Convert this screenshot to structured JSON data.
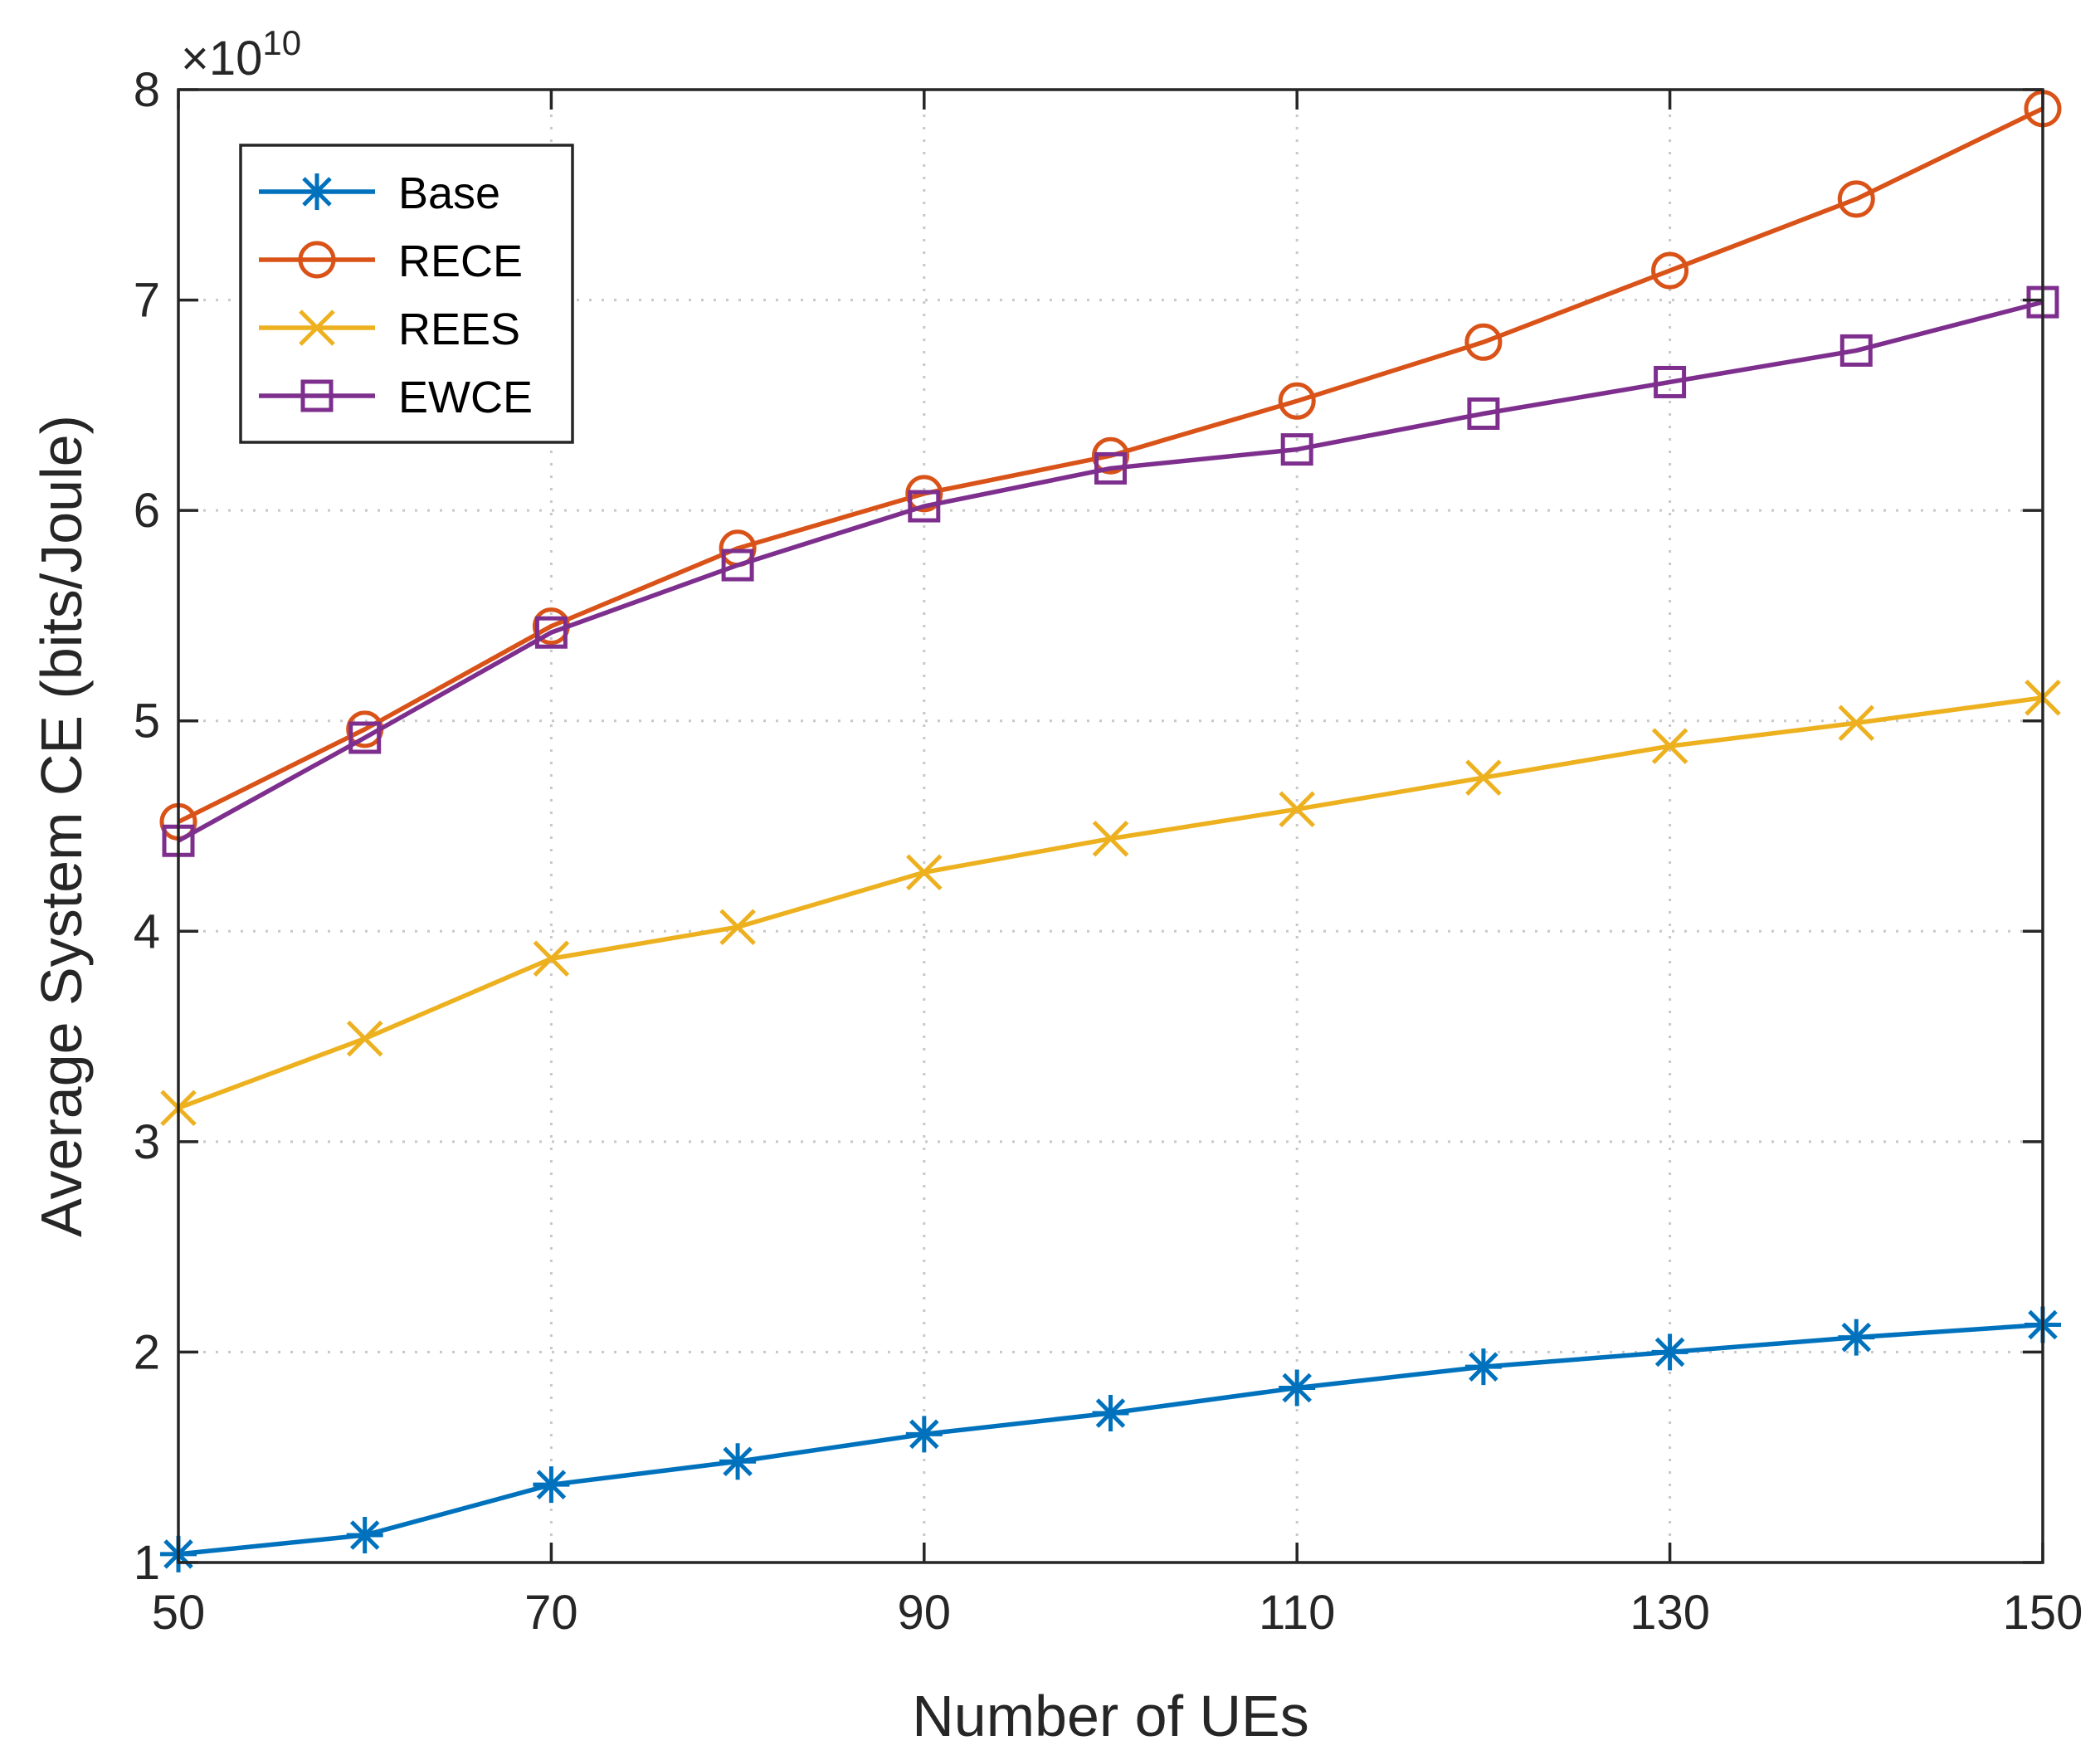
{
  "chart_data": {
    "type": "line",
    "title": "",
    "xlabel": "Number of UEs",
    "ylabel": "Average System CE (bits/Joule)",
    "exponent_label": "×10",
    "exponent_power": "10",
    "x": [
      50,
      60,
      70,
      80,
      90,
      100,
      110,
      120,
      130,
      140,
      150
    ],
    "xlim": [
      50,
      150
    ],
    "ylim": [
      1,
      8
    ],
    "xticks": [
      50,
      70,
      90,
      110,
      130,
      150
    ],
    "yticks": [
      1,
      2,
      3,
      4,
      5,
      6,
      7,
      8
    ],
    "grid": true,
    "legend_position": "top-left",
    "series": [
      {
        "name": "Base",
        "color": "#0072BD",
        "marker": "asterisk",
        "values": [
          1.04,
          1.13,
          1.37,
          1.48,
          1.61,
          1.71,
          1.83,
          1.93,
          2.0,
          2.07,
          2.13
        ]
      },
      {
        "name": "RECE",
        "color": "#D95319",
        "marker": "circle",
        "values": [
          4.52,
          4.96,
          5.45,
          5.82,
          6.08,
          6.26,
          6.52,
          6.8,
          7.14,
          7.48,
          7.91
        ]
      },
      {
        "name": "REES",
        "color": "#EDB120",
        "marker": "x",
        "values": [
          3.16,
          3.49,
          3.87,
          4.02,
          4.28,
          4.44,
          4.58,
          4.73,
          4.88,
          4.99,
          5.11
        ]
      },
      {
        "name": "EWCE",
        "color": "#7E2F8E",
        "marker": "square",
        "values": [
          4.43,
          4.92,
          5.42,
          5.74,
          6.02,
          6.2,
          6.29,
          6.46,
          6.61,
          6.76,
          6.99
        ]
      }
    ]
  }
}
